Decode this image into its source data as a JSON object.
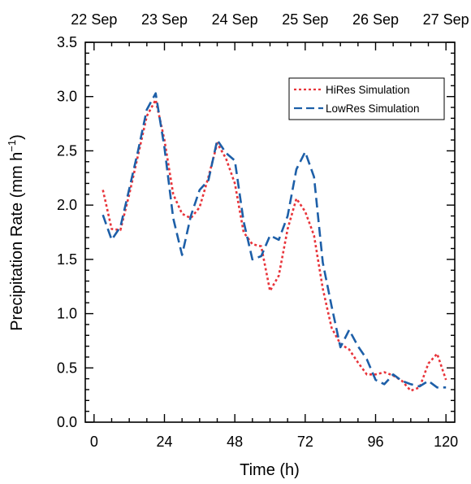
{
  "chart_data": {
    "type": "line",
    "xlabel": "Time (h)",
    "ylabel": "Precipitation Rate (mm h",
    "ylabel_superscript": "−1",
    "ylabel_suffix": ")",
    "xlim": [
      -3,
      123
    ],
    "ylim": [
      0,
      3.5
    ],
    "x_ticks": [
      0,
      24,
      48,
      72,
      96,
      120
    ],
    "y_ticks": [
      0.0,
      0.5,
      1.0,
      1.5,
      2.0,
      2.5,
      3.0,
      3.5
    ],
    "y_tick_labels": [
      "0.0",
      "0.5",
      "1.0",
      "1.5",
      "2.0",
      "2.5",
      "3.0",
      "3.5"
    ],
    "top_axis_ticks": [
      0,
      24,
      48,
      72,
      96,
      120
    ],
    "top_axis_labels": [
      "22 Sep",
      "23 Sep",
      "24 Sep",
      "25 Sep",
      "26 Sep",
      "27 Sep"
    ],
    "legend_position": "top-right",
    "grid": false,
    "series": [
      {
        "name": "HiRes Simulation",
        "color": "#e8343a",
        "style": "dotted",
        "x": [
          3,
          6,
          9,
          12,
          15,
          18,
          21,
          24,
          27,
          30,
          33,
          36,
          39,
          42,
          45,
          48,
          51,
          54,
          57,
          60,
          63,
          66,
          69,
          72,
          75,
          78,
          81,
          84,
          87,
          90,
          93,
          96,
          99,
          102,
          105,
          108,
          111,
          114,
          117,
          120
        ],
        "y": [
          2.14,
          1.78,
          1.77,
          2.1,
          2.46,
          2.82,
          2.97,
          2.6,
          2.1,
          1.92,
          1.88,
          1.98,
          2.26,
          2.57,
          2.43,
          2.2,
          1.75,
          1.64,
          1.62,
          1.21,
          1.35,
          1.78,
          2.06,
          1.94,
          1.72,
          1.23,
          0.87,
          0.72,
          0.67,
          0.55,
          0.44,
          0.44,
          0.46,
          0.43,
          0.38,
          0.29,
          0.32,
          0.54,
          0.63,
          0.39
        ]
      },
      {
        "name": "LowRes Simulation",
        "color": "#1d5fa8",
        "style": "dashed",
        "x": [
          3,
          6,
          9,
          12,
          15,
          18,
          21,
          24,
          27,
          30,
          33,
          36,
          39,
          42,
          45,
          48,
          51,
          54,
          57,
          60,
          63,
          66,
          69,
          72,
          75,
          78,
          81,
          84,
          87,
          90,
          93,
          96,
          99,
          102,
          105,
          108,
          111,
          114,
          117,
          120
        ],
        "y": [
          1.91,
          1.68,
          1.8,
          2.15,
          2.5,
          2.88,
          3.03,
          2.53,
          1.88,
          1.54,
          1.9,
          2.14,
          2.23,
          2.6,
          2.48,
          2.41,
          1.85,
          1.5,
          1.53,
          1.72,
          1.68,
          1.9,
          2.33,
          2.49,
          2.26,
          1.47,
          1.07,
          0.69,
          0.85,
          0.7,
          0.58,
          0.39,
          0.35,
          0.44,
          0.38,
          0.35,
          0.33,
          0.38,
          0.32,
          0.32
        ]
      }
    ]
  }
}
